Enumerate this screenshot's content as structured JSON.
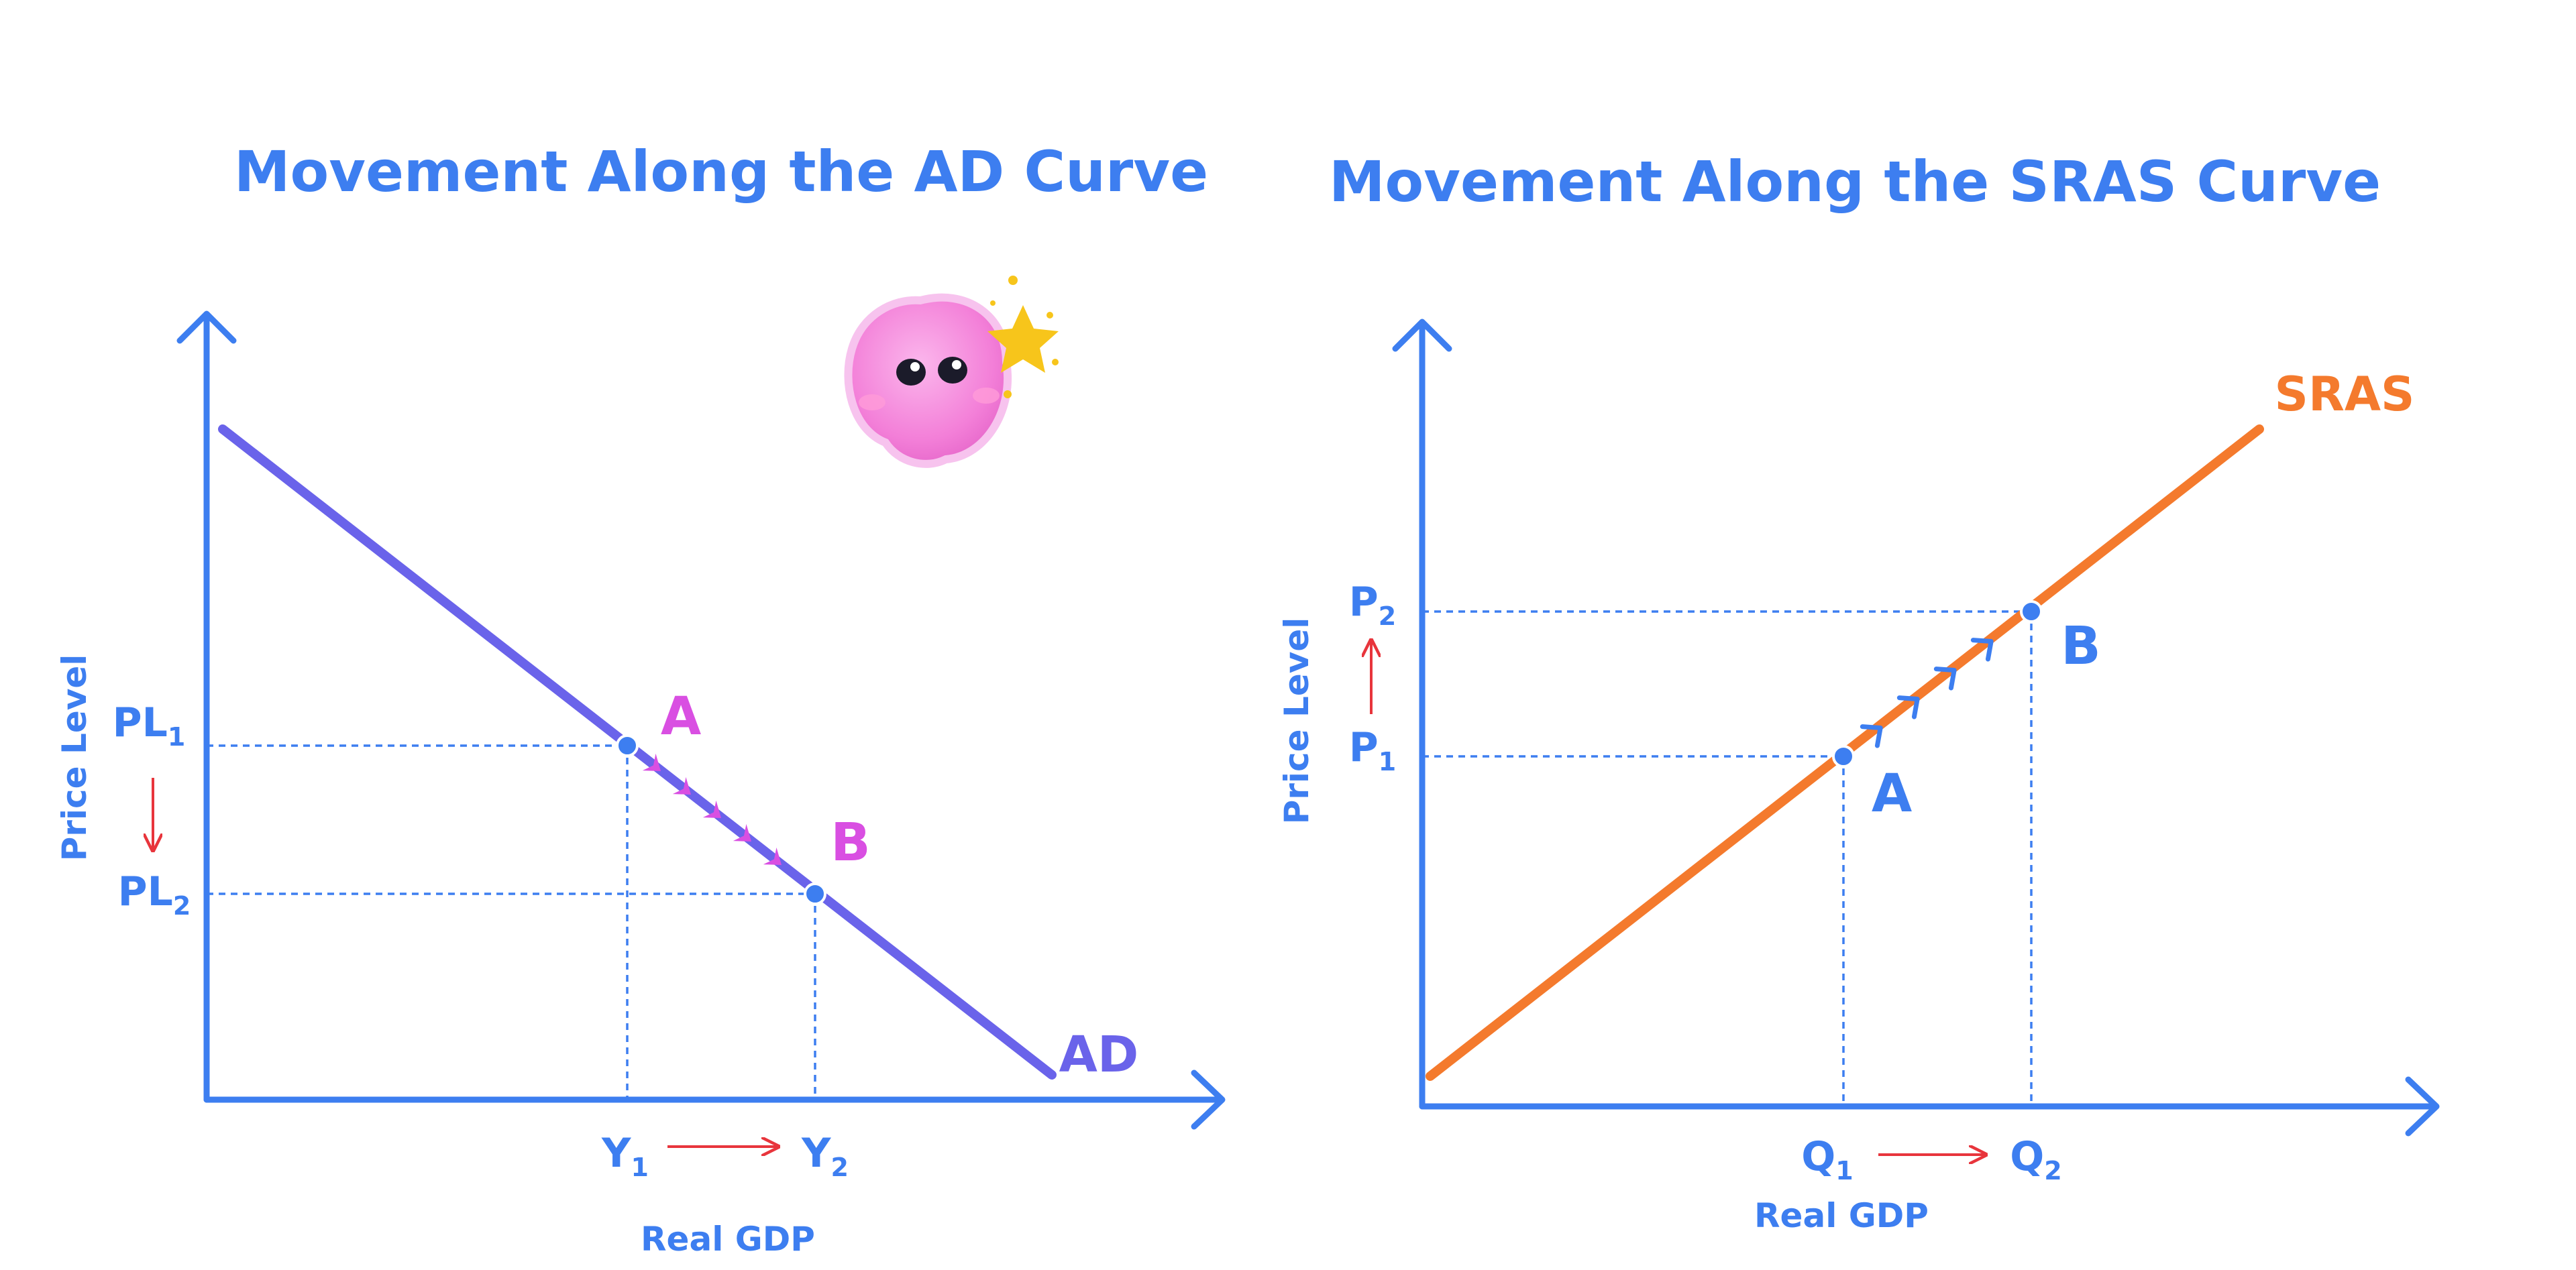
{
  "colors": {
    "axis": "#3d7ef0",
    "ad_curve": "#6a63ea",
    "sras_curve": "#f47a2d",
    "movement_arrows_ad": "#d94fe2",
    "movement_arrows_sras": "#3d7ef0",
    "red_arrow": "#e8353c",
    "guide": "#3d7ef0",
    "mascot_pink": "#f59ae0",
    "star": "#f7c51b"
  },
  "mascot": {
    "icon": "pink-blob-mascot-with-star-icon"
  },
  "ad_diagram": {
    "title": "Movement Along the AD Curve",
    "y_axis_label": "Price Level",
    "x_axis_label": "Real GDP",
    "curve_label": "AD",
    "point_a_label": "A",
    "point_b_label": "B",
    "price_1": {
      "main": "PL",
      "sub": "1"
    },
    "price_2": {
      "main": "PL",
      "sub": "2"
    },
    "output_1": {
      "main": "Y",
      "sub": "1"
    },
    "output_2": {
      "main": "Y",
      "sub": "2"
    }
  },
  "sras_diagram": {
    "title": "Movement Along the SRAS Curve",
    "y_axis_label": "Price Level",
    "x_axis_label": "Real GDP",
    "curve_label": "SRAS",
    "point_a_label": "A",
    "point_b_label": "B",
    "price_1": {
      "main": "P",
      "sub": "1"
    },
    "price_2": {
      "main": "P",
      "sub": "2"
    },
    "output_1": {
      "main": "Q",
      "sub": "1"
    },
    "output_2": {
      "main": "Q",
      "sub": "2"
    }
  }
}
